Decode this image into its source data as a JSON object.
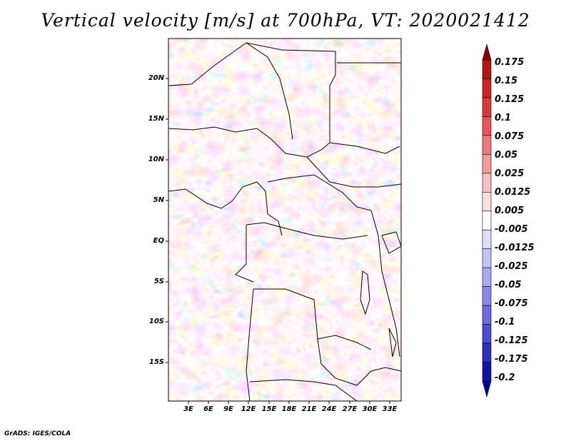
{
  "title": "Vertical velocity [m/s] at 700hPa, VT: 2020021412",
  "map": {
    "latitude_labels": [
      "20N",
      "15N",
      "10N",
      "5N",
      "EQ",
      "5S",
      "10S",
      "15S"
    ],
    "longitude_labels": [
      "3E",
      "6E",
      "9E",
      "12E",
      "15E",
      "18E",
      "21E",
      "24E",
      "27E",
      "30E",
      "33E"
    ]
  },
  "colorbar": {
    "labels": [
      "0.175",
      "0.15",
      "0.125",
      "0.1",
      "0.075",
      "0.05",
      "0.025",
      "0.0125",
      "0.005",
      "-0.005",
      "-0.0125",
      "-0.025",
      "-0.05",
      "-0.075",
      "-0.1",
      "-0.125",
      "-0.175",
      "-0.2"
    ],
    "colors": [
      "#8b0000",
      "#b01818",
      "#c62828",
      "#d73a3a",
      "#e05a5a",
      "#e87c7c",
      "#f09e9e",
      "#f6c0c0",
      "#fbe0e0",
      "#ffffff",
      "#e0e0fb",
      "#c4c4f4",
      "#a8a8ee",
      "#8a8ae6",
      "#6c6cdc",
      "#4c4ccc",
      "#2e2eb8",
      "#1414a0",
      "#000090"
    ]
  },
  "credit": "GrADS: IGES/COLA"
}
